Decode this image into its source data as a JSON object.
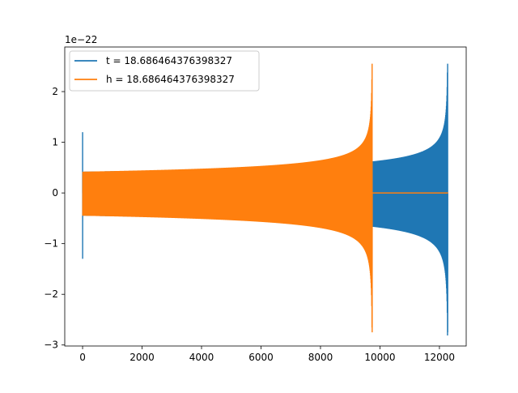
{
  "chart_data": {
    "type": "line",
    "title": "",
    "xlabel": "",
    "ylabel": "",
    "y_offset_label": "1e−22",
    "xlim": [
      -600,
      12900
    ],
    "ylim": [
      -3.02,
      2.88
    ],
    "y_scale_factor": 1e-22,
    "x_ticks": [
      0,
      2000,
      4000,
      6000,
      8000,
      10000,
      12000
    ],
    "y_ticks": [
      -3,
      -2,
      -1,
      0,
      1,
      2
    ],
    "x_tick_labels": [
      "0",
      "2000",
      "4000",
      "6000",
      "8000",
      "10000",
      "12000"
    ],
    "y_tick_labels": [
      "−3",
      "−2",
      "−1",
      "0",
      "1",
      "2"
    ],
    "legend_position": "upper left",
    "grid": false,
    "series": [
      {
        "name": "t = 18.686464376398327",
        "color": "#1f77b4",
        "description_points": {
          "x_start": 0,
          "x_merger": 12280,
          "x_end": 12290,
          "initial_amplitude": 0.42,
          "early_spike_max": 1.2,
          "early_spike_min": -1.3,
          "peak_max": 2.55,
          "peak_min": -2.75
        }
      },
      {
        "name": "h = 18.686464376398327",
        "color": "#ff7f0e",
        "description_points": {
          "x_start": 0,
          "x_merger": 9740,
          "x_end": 12290,
          "initial_amplitude": 0.42,
          "peak_max": 2.55,
          "peak_min": -2.75
        }
      }
    ]
  }
}
